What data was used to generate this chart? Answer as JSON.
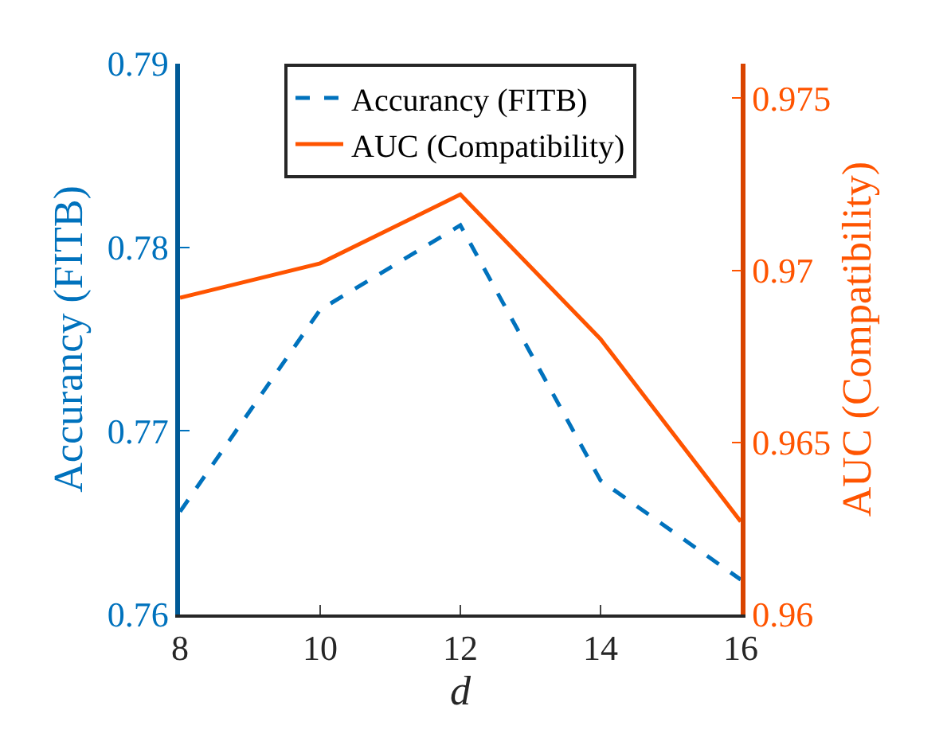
{
  "chart_data": {
    "type": "line",
    "xlabel": "d",
    "ylabel": "Accurancy (FITB)",
    "y2label": "AUC (Compatibility)",
    "x": [
      8,
      10,
      12,
      14,
      16
    ],
    "series": [
      {
        "name": "Accurancy (FITB)",
        "color": "#0072bd",
        "values": [
          0.7656,
          0.7766,
          0.7812,
          0.7673,
          0.7619
        ],
        "line_style": "dashed"
      },
      {
        "name": "AUC (Compatibility)",
        "color": "#ff5400",
        "values": [
          0.9692,
          0.9702,
          0.9722,
          0.968,
          0.9627
        ],
        "axis": "y2",
        "line_style": "solid"
      }
    ],
    "xlim": [
      8,
      16
    ],
    "xticks": [
      8,
      10,
      12,
      14,
      16
    ],
    "ylim": [
      0.76,
      0.79
    ],
    "yticks": [
      {
        "value": 0.76,
        "label": "0.76"
      },
      {
        "value": 0.77,
        "label": "0.77"
      },
      {
        "value": 0.78,
        "label": "0.78"
      },
      {
        "value": 0.79,
        "label": "0.79"
      }
    ],
    "y2lim": [
      0.96,
      0.976
    ],
    "y2ticks": [
      {
        "value": 0.96,
        "label": "0.96"
      },
      {
        "value": 0.965,
        "label": "0.965"
      },
      {
        "value": 0.97,
        "label": "0.97"
      },
      {
        "value": 0.975,
        "label": "0.975"
      }
    ],
    "legend": "top",
    "marker": "none"
  }
}
